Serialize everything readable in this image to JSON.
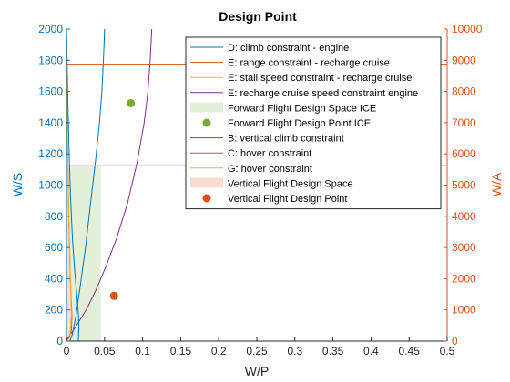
{
  "chart_data": {
    "type": "line",
    "title": "Design Point",
    "xlabel": "W/P",
    "ylabel_left": "W/S",
    "ylabel_right": "W/A",
    "xlim": [
      0,
      0.5
    ],
    "ylim_left": [
      0,
      2000
    ],
    "ylim_right": [
      0,
      10000
    ],
    "xticks": [
      0,
      0.05,
      0.1,
      0.15,
      0.2,
      0.25,
      0.3,
      0.35,
      0.4,
      0.45,
      0.5
    ],
    "xtick_labels": [
      "0",
      "0.05",
      "0.1",
      "0.15",
      "0.2",
      "0.25",
      "0.3",
      "0.35",
      "0.4",
      "0.45",
      "0.5"
    ],
    "yticks_left": [
      "0",
      "200",
      "400",
      "600",
      "800",
      "1000",
      "1200",
      "1400",
      "1600",
      "1800",
      "2000"
    ],
    "yticks_right": [
      "0",
      "1000",
      "2000",
      "3000",
      "4000",
      "5000",
      "6000",
      "7000",
      "8000",
      "9000",
      "10000"
    ],
    "legend_position": "top-right",
    "colors": {
      "blue": "#0072BD",
      "orange": "#D95319",
      "yellow": "#EDB120",
      "purple": "#7E2F8E",
      "green": "#77AC30",
      "fill_green": "#E2EFD9",
      "fill_orange": "#F9DCD0",
      "fill_yellow": "#F7E6BE",
      "left_axis": "#0072BD",
      "right_axis": "#D95319"
    },
    "series": [
      {
        "name": "D: climb constraint - engine",
        "kind": "line",
        "axis": "left",
        "color": "#0072BD",
        "x": [
          0.0045,
          0.0075,
          0.012,
          0.018,
          0.025,
          0.032,
          0.038,
          0.043,
          0.0465,
          0.0485,
          0.0495,
          0.05
        ],
        "y": [
          2,
          40,
          150,
          350,
          600,
          900,
          1150,
          1380,
          1600,
          1800,
          1920,
          2000
        ]
      },
      {
        "name": "E: range constraint - recharge cruise",
        "kind": "hline",
        "axis": "left",
        "color": "#D95319",
        "y": 1775
      },
      {
        "name": "E: stall speed constraint - recharge cruise",
        "kind": "hline",
        "axis": "left",
        "color": "#EDB120",
        "y": 1125
      },
      {
        "name": "E: recharge cruise speed constraint engine",
        "kind": "line",
        "axis": "left",
        "color": "#7E2F8E",
        "x": [
          0.0,
          0.0025,
          0.009,
          0.017,
          0.027,
          0.039,
          0.052,
          0.066,
          0.08,
          0.093,
          0.102,
          0.107,
          0.11,
          0.112
        ],
        "y": [
          2,
          25,
          70,
          130,
          210,
          330,
          480,
          660,
          880,
          1150,
          1400,
          1600,
          1800,
          2000
        ]
      },
      {
        "name": "Forward Flight Design Space ICE",
        "kind": "area",
        "axis": "left",
        "color": "#E2EFD9",
        "x": [
          0.0,
          0.045,
          0.045,
          0.0
        ],
        "y": [
          0,
          0,
          1125,
          1125
        ]
      },
      {
        "name": "Forward Flight Design Point ICE",
        "kind": "point",
        "axis": "left",
        "color": "#77AC30",
        "x": 0.0845,
        "y": 1525
      },
      {
        "name": "B: vertical climb constraint",
        "kind": "line",
        "axis": "right",
        "color": "#0072BD",
        "x": [
          0.0155,
          0.0158,
          0.0162,
          0.0161,
          0.0152,
          0.0135,
          0.011,
          0.008,
          0.0055,
          0.0035,
          0.002,
          0.001,
          0.0004,
          0.0
        ],
        "y": [
          0,
          150,
          400,
          700,
          1000,
          1500,
          2200,
          3200,
          4500,
          6000,
          7500,
          8700,
          9500,
          10000
        ]
      },
      {
        "name": "C: hover constraint",
        "kind": "line",
        "axis": "right",
        "color": "#D95319",
        "x": [
          0.0,
          0.003,
          0.0065,
          0.0072,
          0.005,
          0.003,
          0.0016,
          0.0007,
          0.0002,
          0.0
        ],
        "y": [
          0,
          90,
          350,
          800,
          2000,
          4000,
          6000,
          8000,
          9500,
          10000
        ]
      },
      {
        "name": "G: hover constraint",
        "kind": "line",
        "axis": "right",
        "color": "#EDB120",
        "x": [
          0.0,
          0.0045,
          0.0065,
          0.0052,
          0.0035,
          0.0022,
          0.0012,
          0.0005,
          0.0001,
          0.0
        ],
        "y": [
          0,
          100,
          800,
          2000,
          3500,
          5000,
          6500,
          8000,
          9500,
          10000
        ]
      },
      {
        "name": "Vertical Flight Design Space",
        "kind": "area",
        "axis": "right",
        "color": "#F9DCD0",
        "x": [
          0.0,
          0.0067,
          0.0065,
          0.0045,
          0.002,
          0.0005,
          0.0
        ],
        "y": [
          0,
          350,
          1000,
          2500,
          4500,
          5600,
          5700
        ]
      },
      {
        "name": "Vertical Flight Design Point",
        "kind": "point",
        "axis": "right",
        "color": "#D95319",
        "x": 0.0625,
        "y": 1450
      }
    ]
  }
}
